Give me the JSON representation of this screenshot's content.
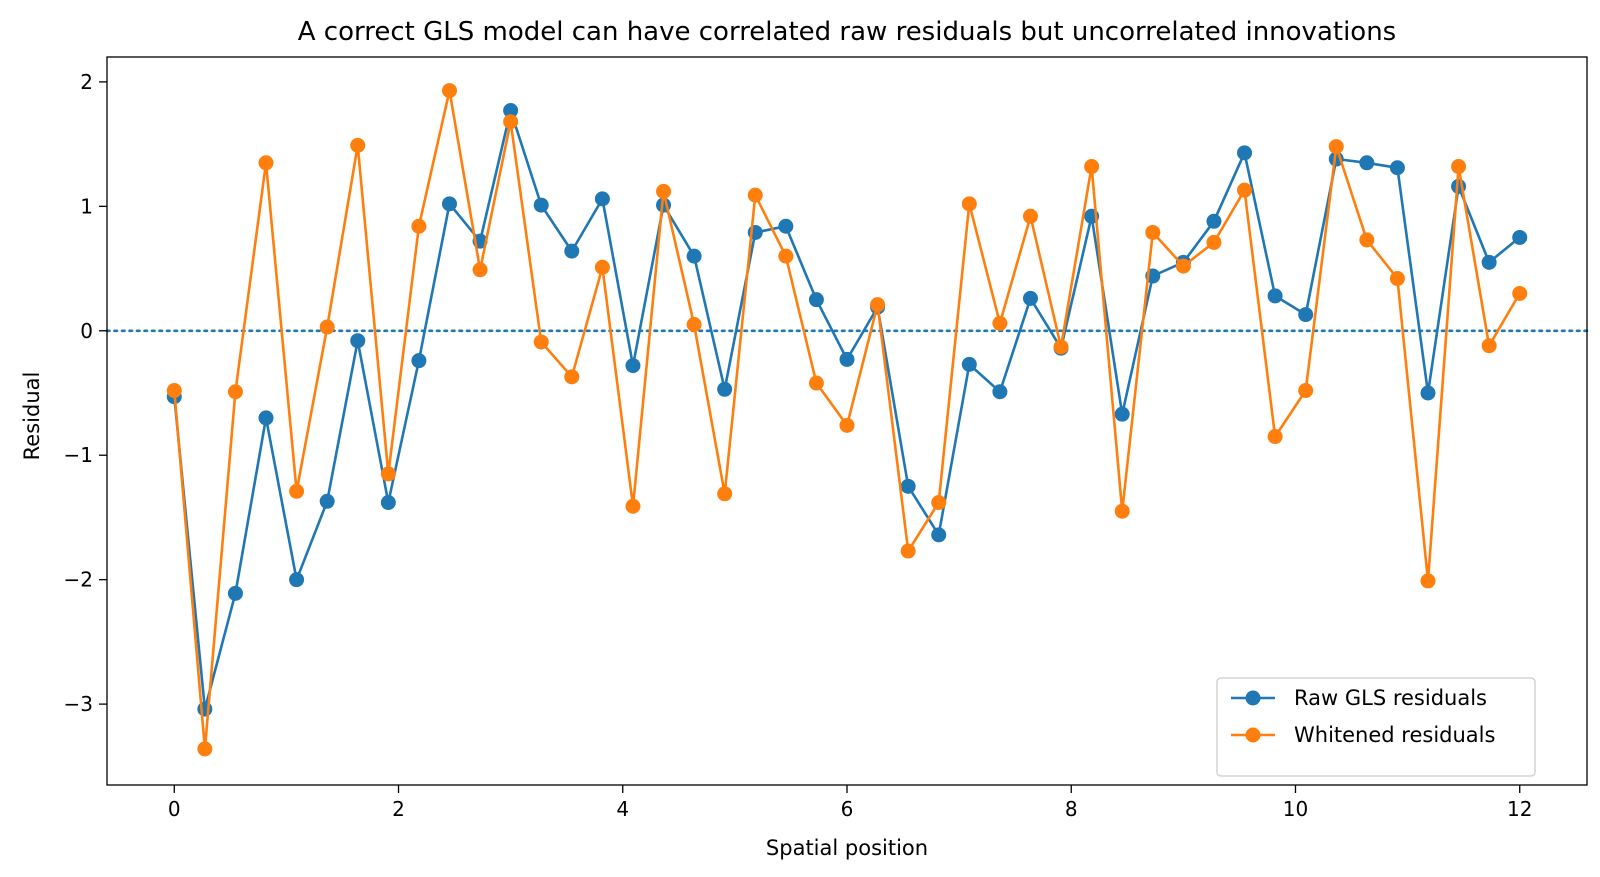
{
  "chart_data": {
    "type": "line",
    "title": "A correct GLS model can have correlated raw residuals but uncorrelated innovations",
    "xlabel": "Spatial position",
    "ylabel": "Residual",
    "xlim": [
      -0.6,
      12.6
    ],
    "ylim": [
      -3.65,
      2.2
    ],
    "xticks": [
      0,
      2,
      4,
      6,
      8,
      10,
      12
    ],
    "xtick_labels": [
      "0",
      "2",
      "4",
      "6",
      "8",
      "10",
      "12"
    ],
    "yticks": [
      -3,
      -2,
      -1,
      0,
      1,
      2
    ],
    "ytick_labels": [
      "−3",
      "−2",
      "−1",
      "0",
      "1",
      "2"
    ],
    "grid": false,
    "legend_position": "lower-right",
    "reference_line": {
      "y": 0,
      "style": "dotted",
      "color": "#1f77b4"
    },
    "x_range": [
      0,
      12
    ],
    "point_count": 45,
    "series": [
      {
        "name": "Raw GLS residuals",
        "color": "#1f77b4",
        "values": [
          -0.53,
          -3.04,
          -2.11,
          -0.7,
          -2.0,
          -1.37,
          -0.08,
          -1.38,
          -0.24,
          1.02,
          0.72,
          1.77,
          1.01,
          0.64,
          1.06,
          -0.28,
          1.01,
          0.6,
          -0.47,
          0.79,
          0.84,
          0.25,
          -0.23,
          0.19,
          -1.25,
          -1.64,
          -0.27,
          -0.49,
          0.26,
          -0.14,
          0.92,
          -0.67,
          0.44,
          0.55,
          0.88,
          1.43,
          0.28,
          0.13,
          1.38,
          1.35,
          1.31,
          -0.5,
          1.16,
          0.55,
          0.75
        ]
      },
      {
        "name": "Whitened residuals",
        "color": "#ff7f0e",
        "values": [
          -0.48,
          -3.36,
          -0.49,
          1.35,
          -1.29,
          0.03,
          1.49,
          -1.15,
          0.84,
          1.93,
          0.49,
          1.68,
          -0.09,
          -0.37,
          0.51,
          -1.41,
          1.12,
          0.05,
          -1.31,
          1.09,
          0.6,
          -0.42,
          -0.76,
          0.21,
          -1.77,
          -1.38,
          1.02,
          0.06,
          0.92,
          -0.13,
          1.32,
          -1.45,
          0.79,
          0.52,
          0.71,
          1.13,
          -0.85,
          -0.48,
          1.48,
          0.73,
          0.42,
          -2.01,
          1.32,
          -0.12,
          0.3
        ]
      }
    ]
  }
}
